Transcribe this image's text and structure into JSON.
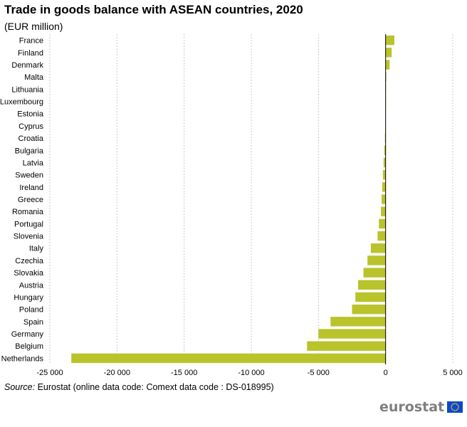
{
  "title": "Trade in goods balance with ASEAN countries, 2020",
  "subtitle": "(EUR million)",
  "source": {
    "label": "Source:",
    "text": "Eurostat (online data code: Comext data code : DS-018995)"
  },
  "logo": {
    "text": "eurostat",
    "icon": "eu-flag-icon"
  },
  "colors": {
    "bar": "#b9c32b",
    "grid": "#c8c8c8",
    "axis": "#000000"
  },
  "chart_data": {
    "type": "bar",
    "orientation": "horizontal",
    "title": "Trade in goods balance with ASEAN countries, 2020",
    "subtitle": "(EUR million)",
    "xlim": [
      -25000,
      5000
    ],
    "xticks": [
      -25000,
      -20000,
      -15000,
      -10000,
      -5000,
      0,
      5000
    ],
    "xtick_labels": [
      "-25 000",
      "-20 000",
      "-15 000",
      "-10 000",
      "-5 000",
      "0",
      "5 000"
    ],
    "grid": "vertical-dashed",
    "categories": [
      "France",
      "Finland",
      "Denmark",
      "Malta",
      "Lithuania",
      "Luxembourg",
      "Estonia",
      "Cyprus",
      "Croatia",
      "Bulgaria",
      "Latvia",
      "Sweden",
      "Ireland",
      "Greece",
      "Romania",
      "Portugal",
      "Slovenia",
      "Italy",
      "Czechia",
      "Slovakia",
      "Austria",
      "Hungary",
      "Poland",
      "Spain",
      "Germany",
      "Belgium",
      "Netherlands"
    ],
    "values": [
      650,
      450,
      300,
      50,
      20,
      10,
      -10,
      -20,
      -50,
      -100,
      -150,
      -200,
      -250,
      -300,
      -350,
      -500,
      -600,
      -1100,
      -1350,
      -1650,
      -2050,
      -2250,
      -2500,
      -4100,
      -5000,
      -5850,
      -23400
    ]
  }
}
